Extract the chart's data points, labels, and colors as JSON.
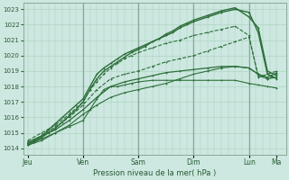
{
  "bg_color": "#cce8e0",
  "grid_color_minor": "#aacfbe",
  "grid_color_major": "#88aa99",
  "line_color": "#2d6e3a",
  "ylabel_ticks": [
    1014,
    1015,
    1016,
    1017,
    1018,
    1019,
    1020,
    1021,
    1022,
    1023
  ],
  "ylim": [
    1013.6,
    1023.4
  ],
  "xlabel": "Pression niveau de la mer( hPa )",
  "x_day_labels": [
    "Jeu",
    "Ven",
    "Sam",
    "Dim",
    "Lun",
    "Ma"
  ],
  "x_day_positions": [
    0,
    24,
    48,
    72,
    96,
    108
  ],
  "xlim": [
    -2,
    112
  ],
  "vlines_x": [
    24,
    48,
    72,
    96
  ],
  "series": [
    {
      "xs": [
        0,
        3,
        6,
        9,
        12,
        15,
        18,
        21,
        24,
        27,
        30,
        33,
        36,
        39,
        42,
        45,
        48,
        51,
        54,
        57,
        60,
        63,
        66,
        69,
        72,
        78,
        84,
        90,
        96,
        100,
        104,
        108
      ],
      "ys": [
        1014.3,
        1014.5,
        1014.8,
        1015.2,
        1015.6,
        1016.0,
        1016.4,
        1016.8,
        1017.2,
        1018.0,
        1018.8,
        1019.2,
        1019.5,
        1019.8,
        1020.1,
        1020.3,
        1020.5,
        1020.7,
        1020.9,
        1021.1,
        1021.3,
        1021.5,
        1021.8,
        1022.0,
        1022.2,
        1022.5,
        1022.8,
        1023.0,
        1022.8,
        1021.5,
        1018.8,
        1018.5
      ],
      "style": "solid",
      "lw": 1.0
    },
    {
      "xs": [
        0,
        3,
        6,
        9,
        12,
        15,
        18,
        21,
        24,
        27,
        30,
        33,
        36,
        39,
        42,
        45,
        48,
        51,
        54,
        57,
        60,
        63,
        66,
        69,
        72,
        78,
        84,
        90,
        96,
        100,
        104,
        108
      ],
      "ys": [
        1014.2,
        1014.4,
        1014.7,
        1015.0,
        1015.3,
        1015.7,
        1016.1,
        1016.5,
        1017.0,
        1017.8,
        1018.5,
        1019.0,
        1019.3,
        1019.6,
        1019.9,
        1020.2,
        1020.4,
        1020.6,
        1020.9,
        1021.1,
        1021.4,
        1021.6,
        1021.9,
        1022.1,
        1022.3,
        1022.6,
        1022.9,
        1023.1,
        1022.5,
        1021.8,
        1019.0,
        1018.7
      ],
      "style": "solid",
      "lw": 1.0
    },
    {
      "xs": [
        0,
        6,
        12,
        18,
        24,
        27,
        30,
        33,
        36,
        39,
        42,
        45,
        48,
        54,
        60,
        66,
        72,
        78,
        84,
        90,
        96,
        100,
        104,
        108
      ],
      "ys": [
        1014.3,
        1014.6,
        1015.0,
        1015.4,
        1015.8,
        1016.5,
        1017.2,
        1017.8,
        1018.0,
        1018.0,
        1018.1,
        1018.2,
        1018.3,
        1018.4,
        1018.4,
        1018.4,
        1018.4,
        1018.4,
        1018.4,
        1018.4,
        1018.2,
        1018.1,
        1018.0,
        1017.9
      ],
      "style": "solid",
      "lw": 0.8
    },
    {
      "xs": [
        0,
        6,
        12,
        18,
        24,
        30,
        36,
        42,
        48,
        54,
        60,
        66,
        72,
        78,
        84,
        90,
        96,
        100,
        104,
        108
      ],
      "ys": [
        1014.4,
        1014.8,
        1015.2,
        1015.8,
        1016.5,
        1017.3,
        1018.0,
        1018.3,
        1018.5,
        1018.7,
        1018.9,
        1019.0,
        1019.1,
        1019.2,
        1019.3,
        1019.3,
        1019.2,
        1018.8,
        1018.5,
        1018.6
      ],
      "style": "solid",
      "lw": 0.9
    },
    {
      "xs": [
        0,
        6,
        12,
        18,
        24,
        27,
        30,
        33,
        36,
        39,
        42,
        45,
        48,
        54,
        60,
        66,
        72,
        78,
        84,
        90,
        96,
        100,
        104,
        108
      ],
      "ys": [
        1014.5,
        1015.0,
        1015.5,
        1016.2,
        1017.0,
        1017.8,
        1018.3,
        1018.8,
        1019.2,
        1019.5,
        1019.8,
        1020.0,
        1020.2,
        1020.5,
        1020.8,
        1021.0,
        1021.3,
        1021.5,
        1021.7,
        1021.9,
        1021.3,
        1018.6,
        1018.8,
        1019.0
      ],
      "style": "dashed",
      "lw": 0.8
    },
    {
      "xs": [
        0,
        6,
        12,
        18,
        24,
        30,
        36,
        42,
        48,
        54,
        60,
        66,
        72,
        78,
        84,
        90,
        96,
        100,
        104,
        108
      ],
      "ys": [
        1014.3,
        1014.8,
        1015.4,
        1016.0,
        1016.8,
        1017.8,
        1018.5,
        1018.8,
        1019.0,
        1019.3,
        1019.6,
        1019.8,
        1020.0,
        1020.3,
        1020.6,
        1020.9,
        1021.2,
        1018.7,
        1018.5,
        1018.8
      ],
      "style": "dashed",
      "lw": 0.8
    },
    {
      "xs": [
        0,
        6,
        12,
        18,
        24,
        30,
        36,
        42,
        48,
        54,
        60,
        66,
        72,
        78,
        84,
        90,
        96,
        100,
        104,
        108
      ],
      "ys": [
        1014.2,
        1014.5,
        1015.0,
        1015.5,
        1016.2,
        1016.8,
        1017.3,
        1017.6,
        1017.8,
        1018.0,
        1018.2,
        1018.5,
        1018.8,
        1019.0,
        1019.2,
        1019.3,
        1019.2,
        1018.8,
        1018.6,
        1018.9
      ],
      "style": "solid",
      "lw": 0.8
    }
  ]
}
